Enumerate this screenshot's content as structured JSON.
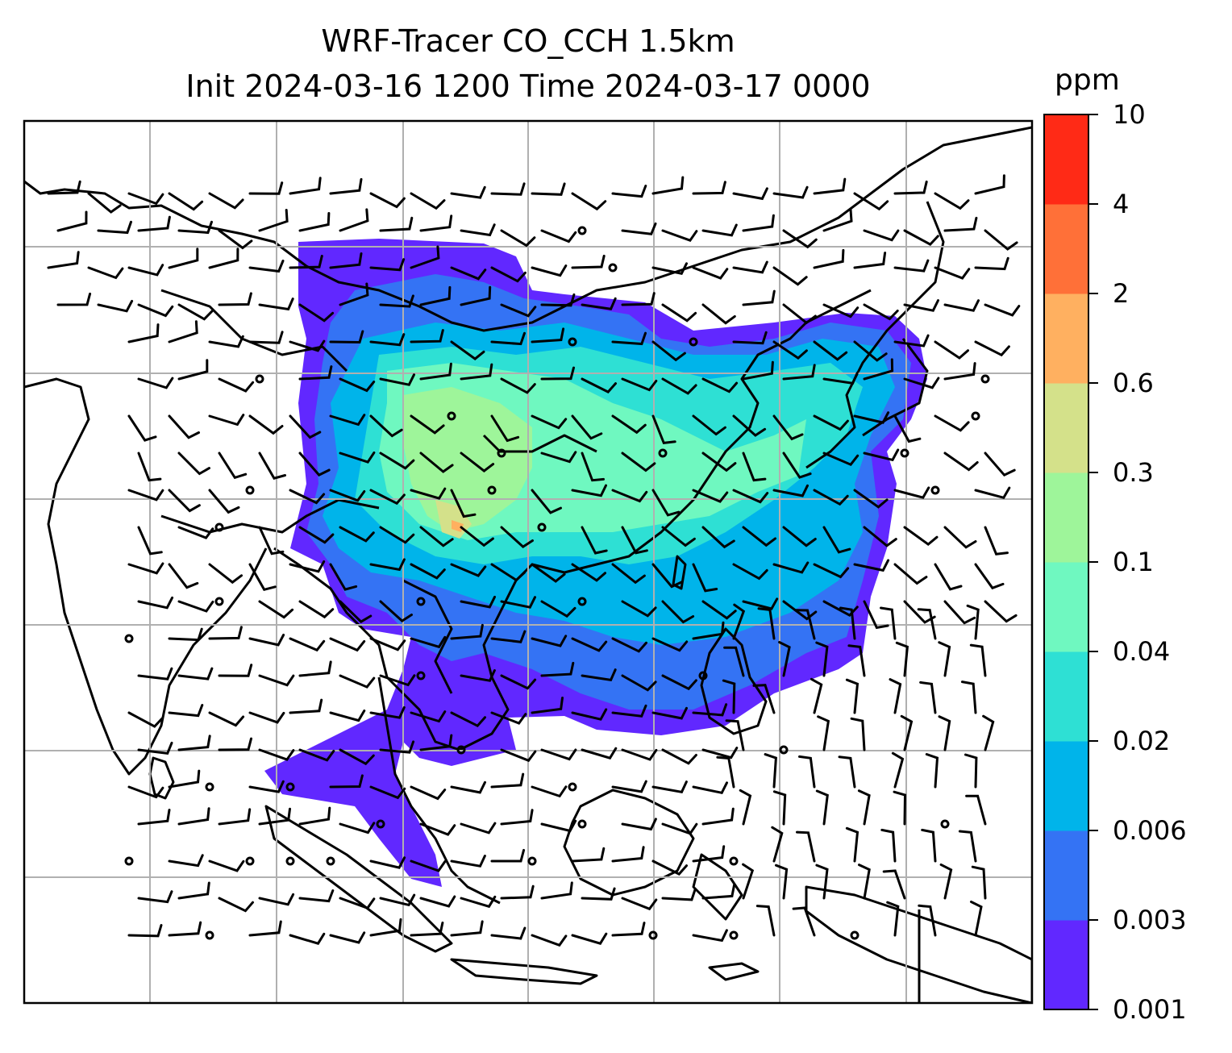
{
  "title": {
    "line1": "WRF-Tracer CO_CCH 1.5km",
    "line2": "Init 2024-03-16 1200 Time 2024-03-17 0000"
  },
  "colorbar": {
    "unit": "ppm",
    "tick_labels": [
      "0.001",
      "0.003",
      "0.006",
      "0.02",
      "0.04",
      "0.1",
      "0.3",
      "0.6",
      "2",
      "4",
      "10"
    ],
    "colors": [
      "#6128ff",
      "#3473f4",
      "#00b4ea",
      "#2ee0d4",
      "#6ff8c0",
      "#9ef59a",
      "#d4e18a",
      "#ffb060",
      "#ff7038",
      "#ff2a16"
    ]
  },
  "map": {
    "gridlines": true,
    "field": "CO tracer concentration",
    "overlay": "wind barbs"
  }
}
